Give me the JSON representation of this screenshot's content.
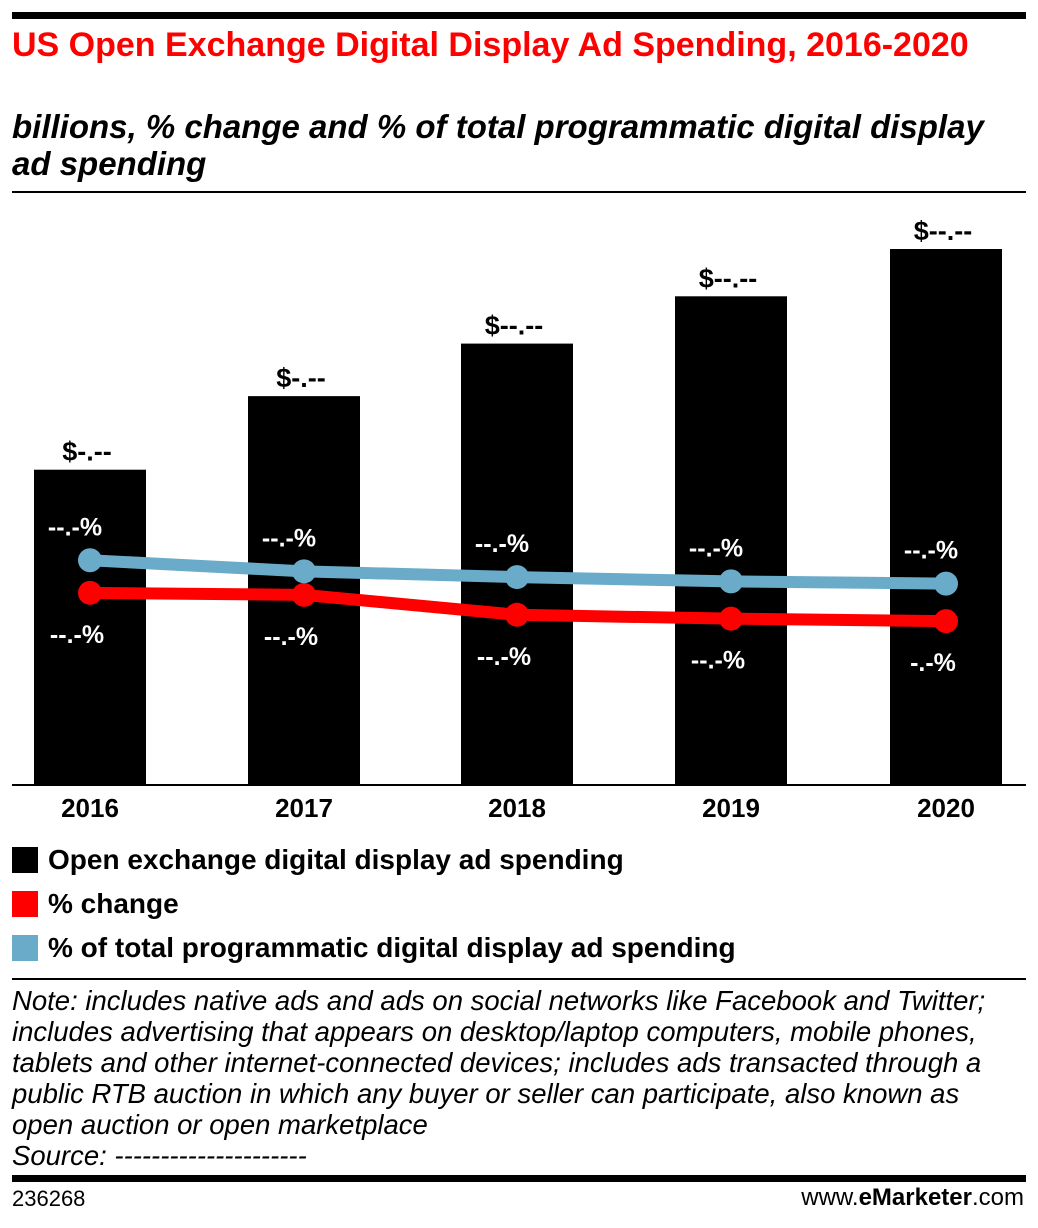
{
  "header": {
    "title": "US Open Exchange Digital Display Ad Spending, 2016-2020",
    "subtitle": "billions, % change and % of total programmatic digital display ad spending"
  },
  "chart_data": {
    "type": "bar",
    "categories": [
      "2016",
      "2017",
      "2018",
      "2019",
      "2020"
    ],
    "series": [
      {
        "name": "Open exchange digital display ad spending",
        "kind": "bar",
        "color": "#000000",
        "values": [
          6.0,
          7.4,
          8.4,
          9.3,
          10.2
        ],
        "labels": [
          "$-.--",
          "$-.--",
          "$--.--",
          "$--.--",
          "$--.--"
        ]
      },
      {
        "name": "% change",
        "kind": "line",
        "color": "#ff0000",
        "values": [
          23.0,
          22.0,
          12.3,
          10.4,
          9.2
        ],
        "labels": [
          "--.-%",
          "--.-%",
          "--.-%",
          "--.-%",
          "-.-%"
        ]
      },
      {
        "name": "% of total programmatic digital display ad spending",
        "kind": "line",
        "color": "#6aabca",
        "values": [
          30.6,
          25.2,
          22.4,
          20.3,
          19.2
        ],
        "labels": [
          "--.-%",
          "--.-%",
          "--.-%",
          "--.-%",
          "--.-%"
        ]
      }
    ],
    "legend_placement": "bottom",
    "grid": false
  },
  "legend": [
    {
      "label": "Open exchange digital display ad spending",
      "color": "#000000"
    },
    {
      "label": "% change",
      "color": "#ff0000"
    },
    {
      "label": "% of total programmatic digital display ad spending",
      "color": "#6aabca"
    }
  ],
  "note": {
    "text": "Note: includes native ads and ads on social networks like Facebook and Twitter; includes advertising that appears on desktop/laptop computers, mobile phones, tablets and other internet-connected devices; includes ads transacted through a public RTB auction in which any buyer or seller can participate, also known as open auction or open marketplace",
    "source": "Source: ---------------------"
  },
  "footer": {
    "chart_id": "236268",
    "brand_prefix": "www.",
    "brand_name": "eMarketer",
    "brand_suffix": ".com"
  }
}
